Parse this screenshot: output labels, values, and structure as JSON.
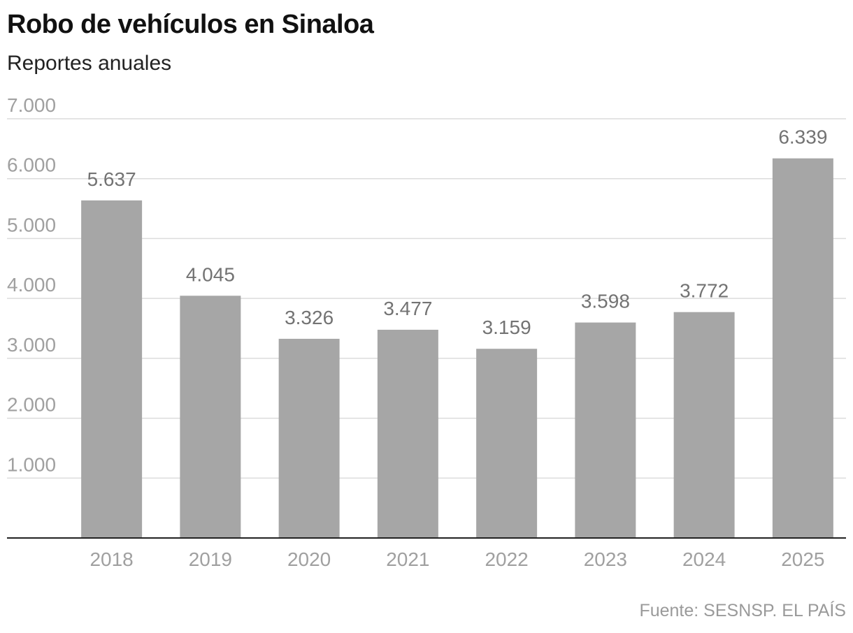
{
  "header": {
    "title": "Robo de vehículos en Sinaloa",
    "subtitle": "Reportes anuales"
  },
  "footer": {
    "source": "Fuente: SESNSP. EL PAÍS"
  },
  "colors": {
    "bar": "#a6a6a6",
    "grid": "#dcdcdc",
    "axis": "#222222",
    "tick_text": "#a0a0a0",
    "value_text": "#737373"
  },
  "chart_data": {
    "type": "bar",
    "title": "Robo de vehículos en Sinaloa",
    "subtitle": "Reportes anuales",
    "categories": [
      "2018",
      "2019",
      "2020",
      "2021",
      "2022",
      "2023",
      "2024",
      "2025"
    ],
    "values": [
      5637,
      4045,
      3326,
      3477,
      3159,
      3598,
      3772,
      6339
    ],
    "value_labels": [
      "5.637",
      "4.045",
      "3.326",
      "3.477",
      "3.159",
      "3.598",
      "3.772",
      "6.339"
    ],
    "y_ticks": [
      1000,
      2000,
      3000,
      4000,
      5000,
      6000,
      7000
    ],
    "y_tick_labels": [
      "1.000",
      "2.000",
      "3.000",
      "4.000",
      "5.000",
      "6.000",
      "7.000"
    ],
    "ylim": [
      0,
      7000
    ],
    "grid": true,
    "legend": "none",
    "source": "Fuente: SESNSP. EL PAÍS"
  }
}
